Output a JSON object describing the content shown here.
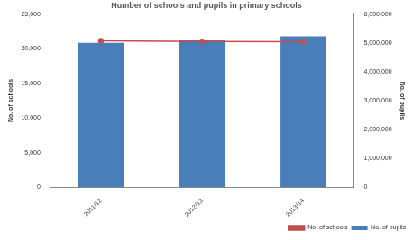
{
  "chart_data": {
    "type": "bar",
    "title": "Number of schools and pupils in primary schools",
    "categories": [
      "2011/12",
      "2012/13",
      "2013/14"
    ],
    "y_label": "No. of schools",
    "y2_label": "No. of pupils",
    "ylim": [
      0,
      25000
    ],
    "yticks": [
      0,
      {
        "value": 5000,
        "label": "5,000"
      },
      {
        "value": 10000,
        "label": "10,000"
      },
      {
        "value": 15000,
        "label": "15,000"
      },
      {
        "value": 20000,
        "label": "20,000"
      },
      {
        "value": 25000,
        "label": "25,000"
      }
    ],
    "y2lim": [
      0,
      6000000
    ],
    "y2ticks": [
      0,
      {
        "value": 1000000,
        "label": "1,000,000"
      },
      {
        "value": 2000000,
        "label": "2,000,000"
      },
      {
        "value": 3000000,
        "label": "3,000,000"
      },
      {
        "value": 4000000,
        "label": "4,000,000"
      },
      {
        "value": 5000000,
        "label": "5,000,000"
      },
      {
        "value": 6000000,
        "label": "6,000,000"
      }
    ],
    "grid": false,
    "legend": "bottom",
    "series": [
      {
        "name": "No. of pupils",
        "type": "bar",
        "color": "#4a7ebb",
        "axis": "y2",
        "values": [
          5000000,
          5110000,
          5230000
        ]
      },
      {
        "name": "No. of schools",
        "type": "line",
        "color": "#c0504d",
        "marker": "circle",
        "values": [
          21150,
          21050,
          21000
        ]
      }
    ]
  }
}
